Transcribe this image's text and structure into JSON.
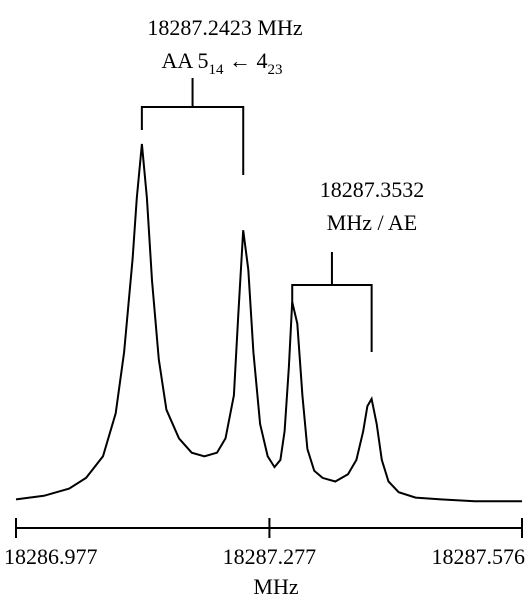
{
  "chart_data": {
    "type": "line",
    "title": "",
    "xlabel": "MHz",
    "ylabel": "",
    "xlim": [
      18286.977,
      18287.576
    ],
    "ylim": [
      0,
      1
    ],
    "x_ticks": [
      {
        "value": 18286.977,
        "label": "18286.977"
      },
      {
        "value": 18287.277,
        "label": "18287.277"
      },
      {
        "value": 18287.576,
        "label": "18287.576"
      }
    ],
    "grid": false,
    "series": [
      {
        "x": [
          18286.977,
          18287.01,
          18287.04,
          18287.06,
          18287.08,
          18287.095,
          18287.105,
          18287.115,
          18287.12,
          18287.126,
          18287.132,
          18287.138,
          18287.146,
          18287.155,
          18287.17,
          18287.185,
          18287.2,
          18287.215,
          18287.225,
          18287.235,
          18287.24,
          18287.246,
          18287.252,
          18287.258,
          18287.266,
          18287.275,
          18287.283,
          18287.29,
          18287.295,
          18287.3,
          18287.304,
          18287.31,
          18287.316,
          18287.322,
          18287.33,
          18287.34,
          18287.355,
          18287.37,
          18287.38,
          18287.388,
          18287.393,
          18287.398,
          18287.404,
          18287.41,
          18287.418,
          18287.43,
          18287.45,
          18287.48,
          18287.52,
          18287.576
        ],
        "y": [
          0.01,
          0.02,
          0.04,
          0.07,
          0.13,
          0.25,
          0.42,
          0.68,
          0.85,
          1.0,
          0.85,
          0.62,
          0.4,
          0.26,
          0.18,
          0.14,
          0.13,
          0.14,
          0.18,
          0.3,
          0.52,
          0.76,
          0.65,
          0.42,
          0.22,
          0.13,
          0.1,
          0.12,
          0.2,
          0.38,
          0.56,
          0.5,
          0.3,
          0.15,
          0.09,
          0.07,
          0.06,
          0.08,
          0.12,
          0.2,
          0.27,
          0.29,
          0.22,
          0.12,
          0.06,
          0.03,
          0.015,
          0.01,
          0.005,
          0.005
        ]
      }
    ],
    "annotations": [
      {
        "line1": "18287.2423 MHz",
        "prefix": "AA 5",
        "sub1": "14",
        "arrow": " ← 4",
        "sub2": "23",
        "peaks_x": [
          18287.126,
          18287.246
        ]
      },
      {
        "line1": "18287.3532",
        "line2": "MHz / AE",
        "peaks_x": [
          18287.304,
          18287.398
        ]
      }
    ]
  }
}
